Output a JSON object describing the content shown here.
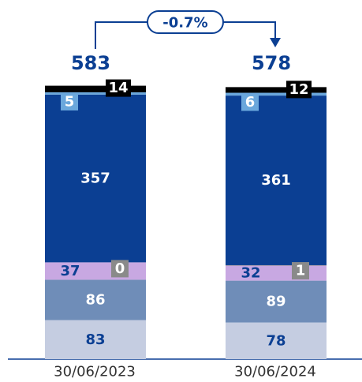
{
  "chart_data": {
    "type": "stacked_bar",
    "categories": [
      "30/06/2023",
      "30/06/2024"
    ],
    "totals": [
      583,
      578
    ],
    "annotation": "-0.7%",
    "series": [
      {
        "color": "#c5cde1",
        "values": [
          83,
          78
        ]
      },
      {
        "color": "#6f8db8",
        "values": [
          86,
          89
        ]
      },
      {
        "color": "#c8a8e2",
        "values": [
          37,
          32
        ]
      },
      {
        "color": "#8a8a8a",
        "values": [
          0,
          1
        ]
      },
      {
        "color": "#0b3f93",
        "values": [
          357,
          361
        ]
      },
      {
        "color": "#6aa7dc",
        "values": [
          5,
          6
        ]
      },
      {
        "color": "#000000",
        "values": [
          14,
          12
        ]
      }
    ]
  }
}
